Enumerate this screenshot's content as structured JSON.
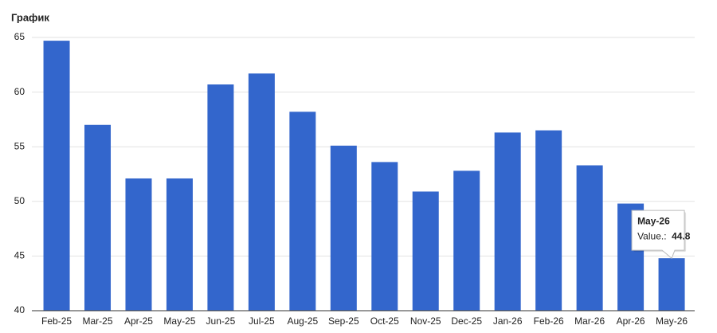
{
  "chart_data": {
    "type": "bar",
    "title": "График",
    "categories": [
      "Feb-25",
      "Mar-25",
      "Apr-25",
      "May-25",
      "Jun-25",
      "Jul-25",
      "Aug-25",
      "Sep-25",
      "Oct-25",
      "Nov-25",
      "Dec-25",
      "Jan-26",
      "Feb-26",
      "Mar-26",
      "Apr-26",
      "May-26"
    ],
    "values": [
      64.7,
      57.0,
      52.1,
      52.1,
      60.7,
      61.7,
      58.2,
      55.1,
      53.6,
      50.9,
      52.8,
      56.3,
      56.5,
      53.3,
      49.8,
      44.8
    ],
    "color": "#3366cc",
    "ylim": [
      40,
      65
    ],
    "yticks": [
      40,
      45,
      50,
      55,
      60,
      65
    ],
    "grid": true,
    "tooltip": {
      "category_index": 15,
      "label": "Value.:"
    }
  }
}
